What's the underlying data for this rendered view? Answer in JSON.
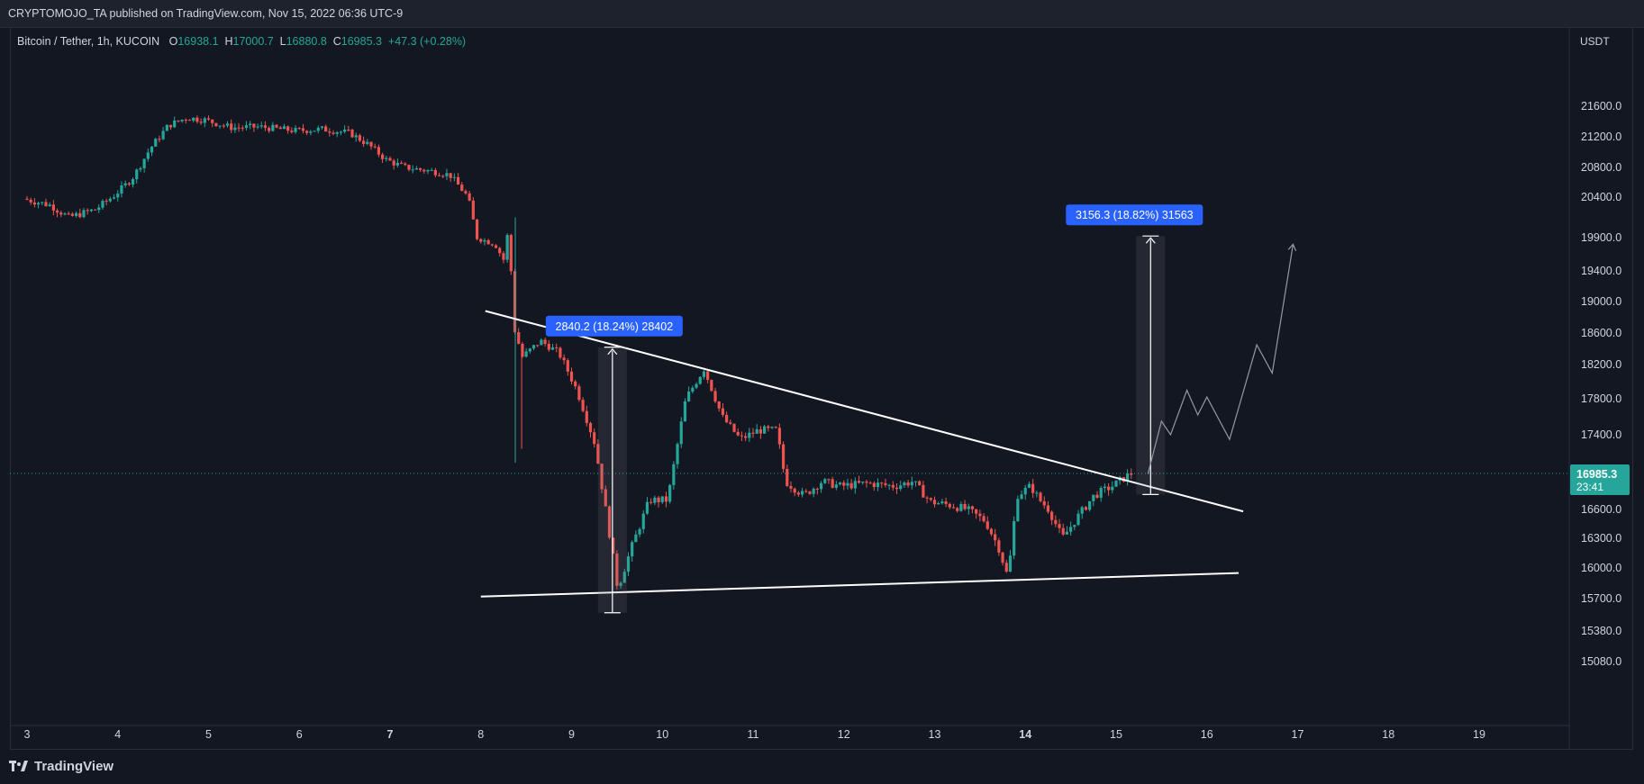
{
  "header": {
    "published": "CRYPTOMOJO_TA published on TradingView.com, Nov 15, 2022 06:36 UTC-9"
  },
  "legend": {
    "symbol": "Bitcoin / Tether, 1h, KUCOIN",
    "o_label": "O",
    "o": "16938.1",
    "h_label": "H",
    "h": "17000.7",
    "l_label": "L",
    "l": "16880.8",
    "c_label": "C",
    "c": "16985.3",
    "change": "+47.3 (+0.28%)"
  },
  "price_axis": {
    "currency": "USDT"
  },
  "last_price": {
    "value": "16985.3",
    "countdown": "23:41"
  },
  "footer": {
    "brand": "TradingView"
  },
  "colors": {
    "background": "#131722",
    "up": "#26a69a",
    "down": "#ef5350",
    "measure_label": "#2962ff",
    "trendline": "#ffffff",
    "projection": "#9598a1"
  },
  "chart_data": {
    "type": "candlestick",
    "symbol": "Bitcoin / Tether",
    "interval": "1h",
    "exchange": "KUCOIN",
    "x_ticks": [
      "3",
      "4",
      "5",
      "6",
      "7",
      "8",
      "9",
      "10",
      "11",
      "12",
      "13",
      "14",
      "15",
      "16",
      "17",
      "18",
      "19"
    ],
    "y_ticks": [
      21600.0,
      21200.0,
      20800.0,
      20400.0,
      19900.0,
      19400.0,
      19000.0,
      18600.0,
      18200.0,
      17800.0,
      17400.0,
      16600.0,
      16300.0,
      16000.0,
      15700.0,
      15380.0,
      15080.0
    ],
    "y_tick_labels": [
      "21600.0",
      "21200.0",
      "20800.0",
      "20400.0",
      "19900.0",
      "19400.0",
      "19000.0",
      "18600.0",
      "18200.0",
      "17800.0",
      "17400.0",
      "16600.0",
      "16300.0",
      "16000.0",
      "15700.0",
      "15380.0",
      "15080.0"
    ],
    "price_path": [
      {
        "day": 3.0,
        "price": 20380
      },
      {
        "day": 3.3,
        "price": 20300
      },
      {
        "day": 3.5,
        "price": 20150
      },
      {
        "day": 3.8,
        "price": 20250
      },
      {
        "day": 4.0,
        "price": 20420
      },
      {
        "day": 4.2,
        "price": 20650
      },
      {
        "day": 4.4,
        "price": 21050
      },
      {
        "day": 4.6,
        "price": 21350
      },
      {
        "day": 4.8,
        "price": 21450
      },
      {
        "day": 5.0,
        "price": 21420
      },
      {
        "day": 5.3,
        "price": 21320
      },
      {
        "day": 5.6,
        "price": 21330
      },
      {
        "day": 6.0,
        "price": 21280
      },
      {
        "day": 6.3,
        "price": 21300
      },
      {
        "day": 6.6,
        "price": 21250
      },
      {
        "day": 6.8,
        "price": 21100
      },
      {
        "day": 7.0,
        "price": 20900
      },
      {
        "day": 7.2,
        "price": 20800
      },
      {
        "day": 7.5,
        "price": 20750
      },
      {
        "day": 7.7,
        "price": 20700
      },
      {
        "day": 7.9,
        "price": 20400
      },
      {
        "day": 8.0,
        "price": 19900
      },
      {
        "day": 8.2,
        "price": 19800
      },
      {
        "day": 8.3,
        "price": 19550
      },
      {
        "day": 8.35,
        "price": 20100
      },
      {
        "day": 8.4,
        "price": 18700
      },
      {
        "day": 8.5,
        "price": 18300
      },
      {
        "day": 8.7,
        "price": 18500
      },
      {
        "day": 8.9,
        "price": 18350
      },
      {
        "day": 9.1,
        "price": 17900
      },
      {
        "day": 9.3,
        "price": 17300
      },
      {
        "day": 9.45,
        "price": 16400
      },
      {
        "day": 9.55,
        "price": 15800
      },
      {
        "day": 9.7,
        "price": 16200
      },
      {
        "day": 9.9,
        "price": 16700
      },
      {
        "day": 10.1,
        "price": 16700
      },
      {
        "day": 10.3,
        "price": 17800
      },
      {
        "day": 10.5,
        "price": 18150
      },
      {
        "day": 10.7,
        "price": 17600
      },
      {
        "day": 10.9,
        "price": 17350
      },
      {
        "day": 11.1,
        "price": 17450
      },
      {
        "day": 11.3,
        "price": 17450
      },
      {
        "day": 11.4,
        "price": 16900
      },
      {
        "day": 11.6,
        "price": 16750
      },
      {
        "day": 11.8,
        "price": 16900
      },
      {
        "day": 12.0,
        "price": 16850
      },
      {
        "day": 12.3,
        "price": 16880
      },
      {
        "day": 12.6,
        "price": 16850
      },
      {
        "day": 12.8,
        "price": 16900
      },
      {
        "day": 13.0,
        "price": 16680
      },
      {
        "day": 13.2,
        "price": 16650
      },
      {
        "day": 13.4,
        "price": 16600
      },
      {
        "day": 13.6,
        "price": 16480
      },
      {
        "day": 13.75,
        "price": 16200
      },
      {
        "day": 13.85,
        "price": 15900
      },
      {
        "day": 13.95,
        "price": 16750
      },
      {
        "day": 14.1,
        "price": 16850
      },
      {
        "day": 14.2,
        "price": 16700
      },
      {
        "day": 14.3,
        "price": 16600
      },
      {
        "day": 14.45,
        "price": 16300
      },
      {
        "day": 14.6,
        "price": 16500
      },
      {
        "day": 14.8,
        "price": 16750
      },
      {
        "day": 15.0,
        "price": 16850
      },
      {
        "day": 15.2,
        "price": 16985
      }
    ],
    "trendlines": [
      {
        "name": "descending-resistance",
        "from": {
          "day": 8.05,
          "price": 18880
        },
        "to": {
          "day": 16.4,
          "price": 16580
        }
      },
      {
        "name": "ascending-support",
        "from": {
          "day": 8.0,
          "price": 15720
        },
        "to": {
          "day": 16.35,
          "price": 15950
        }
      }
    ],
    "measurements": [
      {
        "label": "2840.2 (18.24%) 28402",
        "x_day": 9.45,
        "from_price": 15560,
        "to_price": 18420
      },
      {
        "label": "3156.3 (18.82%) 31563",
        "x_day": 15.38,
        "from_price": 16760,
        "to_price": 19920
      }
    ],
    "projection_path": [
      {
        "day": 15.35,
        "price": 16980
      },
      {
        "day": 15.5,
        "price": 17550
      },
      {
        "day": 15.6,
        "price": 17400
      },
      {
        "day": 15.78,
        "price": 17900
      },
      {
        "day": 15.9,
        "price": 17620
      },
      {
        "day": 16.0,
        "price": 17820
      },
      {
        "day": 16.25,
        "price": 17350
      },
      {
        "day": 16.55,
        "price": 18450
      },
      {
        "day": 16.72,
        "price": 18100
      },
      {
        "day": 16.95,
        "price": 19800
      }
    ],
    "last_price": 16985.3
  }
}
